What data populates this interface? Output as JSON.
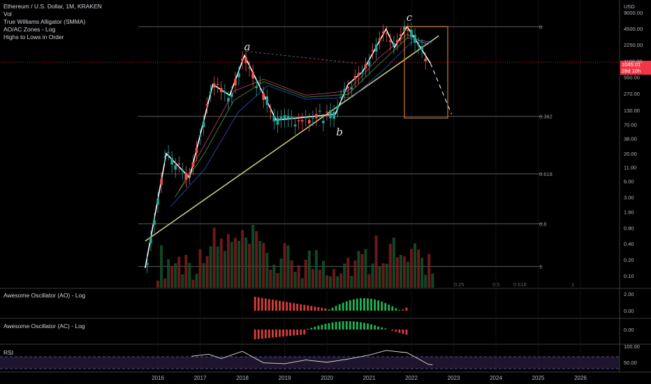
{
  "header": {
    "title": "Ethereum / U.S. Dollar, 1M, KRAKEN",
    "indicators": [
      "Vol",
      "True Williams Alligator (SMMA)",
      "AO/AC Zones - Log",
      "Highs to Lows in Order"
    ]
  },
  "price_tag": {
    "value": "1045.01",
    "countdown": "28d 10h"
  },
  "annotations": {
    "a": "a",
    "b": "b",
    "c": "c"
  },
  "panes": {
    "ao": {
      "label": "Awesome Oscillator (AO) - Log",
      "ticks": [
        "2.00",
        "0.00"
      ]
    },
    "ac": {
      "label": "Awesome Oscillator (AC) - Log",
      "ticks": [
        "0.00"
      ]
    },
    "rsi": {
      "label": "RSI",
      "ticks": [
        "100.00",
        "50.00"
      ]
    }
  },
  "colors": {
    "up": "#26a69a",
    "down": "#ef5350",
    "trend": "#c8c87a",
    "zig": "#ffffff",
    "box": "#c87a32"
  },
  "chart_data": {
    "type": "line",
    "title": "Ethereum / U.S. Dollar, 1M, KRAKEN",
    "y_unit": "USD",
    "y_scale": "log",
    "y_ticks": [
      "9000.00",
      "4500.00",
      "2250.00",
      "1100.00",
      "550.00",
      "270.00",
      "130.00",
      "70.00",
      "38.00",
      "20.00",
      "11.00",
      "6.00",
      "3.00",
      "1.60",
      "0.80",
      "0.40",
      "0.20",
      "0.10"
    ],
    "x_ticks": [
      "2016",
      "2017",
      "2018",
      "2019",
      "2020",
      "2021",
      "2022",
      "2023",
      "2024",
      "2025",
      "2026"
    ],
    "fib_levels": [
      {
        "label": "0",
        "price": 4870
      },
      {
        "label": "0.382",
        "price": 100
      },
      {
        "label": "0.618",
        "price": 8.3
      },
      {
        "label": "0.8",
        "price": 0.95
      },
      {
        "label": "1",
        "price": 0.15
      }
    ],
    "fib_extension_labels": [
      "0.25",
      "0.5",
      "0.618",
      "1"
    ],
    "zigzag": [
      {
        "x": 2015.7,
        "y": 0.14
      },
      {
        "x": 2016.2,
        "y": 20
      },
      {
        "x": 2016.75,
        "y": 7
      },
      {
        "x": 2017.3,
        "y": 400
      },
      {
        "x": 2017.7,
        "y": 250
      },
      {
        "x": 2018.05,
        "y": 1400
      },
      {
        "x": 2018.8,
        "y": 85
      },
      {
        "x": 2020.2,
        "y": 110
      },
      {
        "x": 2020.5,
        "y": 400
      },
      {
        "x": 2020.85,
        "y": 700
      },
      {
        "x": 2021.4,
        "y": 4400
      },
      {
        "x": 2021.6,
        "y": 2000
      },
      {
        "x": 2021.9,
        "y": 4870
      },
      {
        "x": 2022.45,
        "y": 1000
      }
    ],
    "projection": [
      {
        "x": 2022.45,
        "y": 1000
      },
      {
        "x": 2022.95,
        "y": 110
      }
    ],
    "trendline": [
      {
        "x": 2015.7,
        "y": 0.45
      },
      {
        "x": 2022.65,
        "y": 3300
      }
    ],
    "rsi": [
      {
        "x": 2016.8,
        "y": 68
      },
      {
        "x": 2017.2,
        "y": 75
      },
      {
        "x": 2017.5,
        "y": 60
      },
      {
        "x": 2018.0,
        "y": 85
      },
      {
        "x": 2018.5,
        "y": 45
      },
      {
        "x": 2019.0,
        "y": 42
      },
      {
        "x": 2019.5,
        "y": 55
      },
      {
        "x": 2020.0,
        "y": 47
      },
      {
        "x": 2020.5,
        "y": 58
      },
      {
        "x": 2021.0,
        "y": 72
      },
      {
        "x": 2021.4,
        "y": 88
      },
      {
        "x": 2021.9,
        "y": 80
      },
      {
        "x": 2022.4,
        "y": 40
      },
      {
        "x": 2022.5,
        "y": 38
      }
    ]
  }
}
